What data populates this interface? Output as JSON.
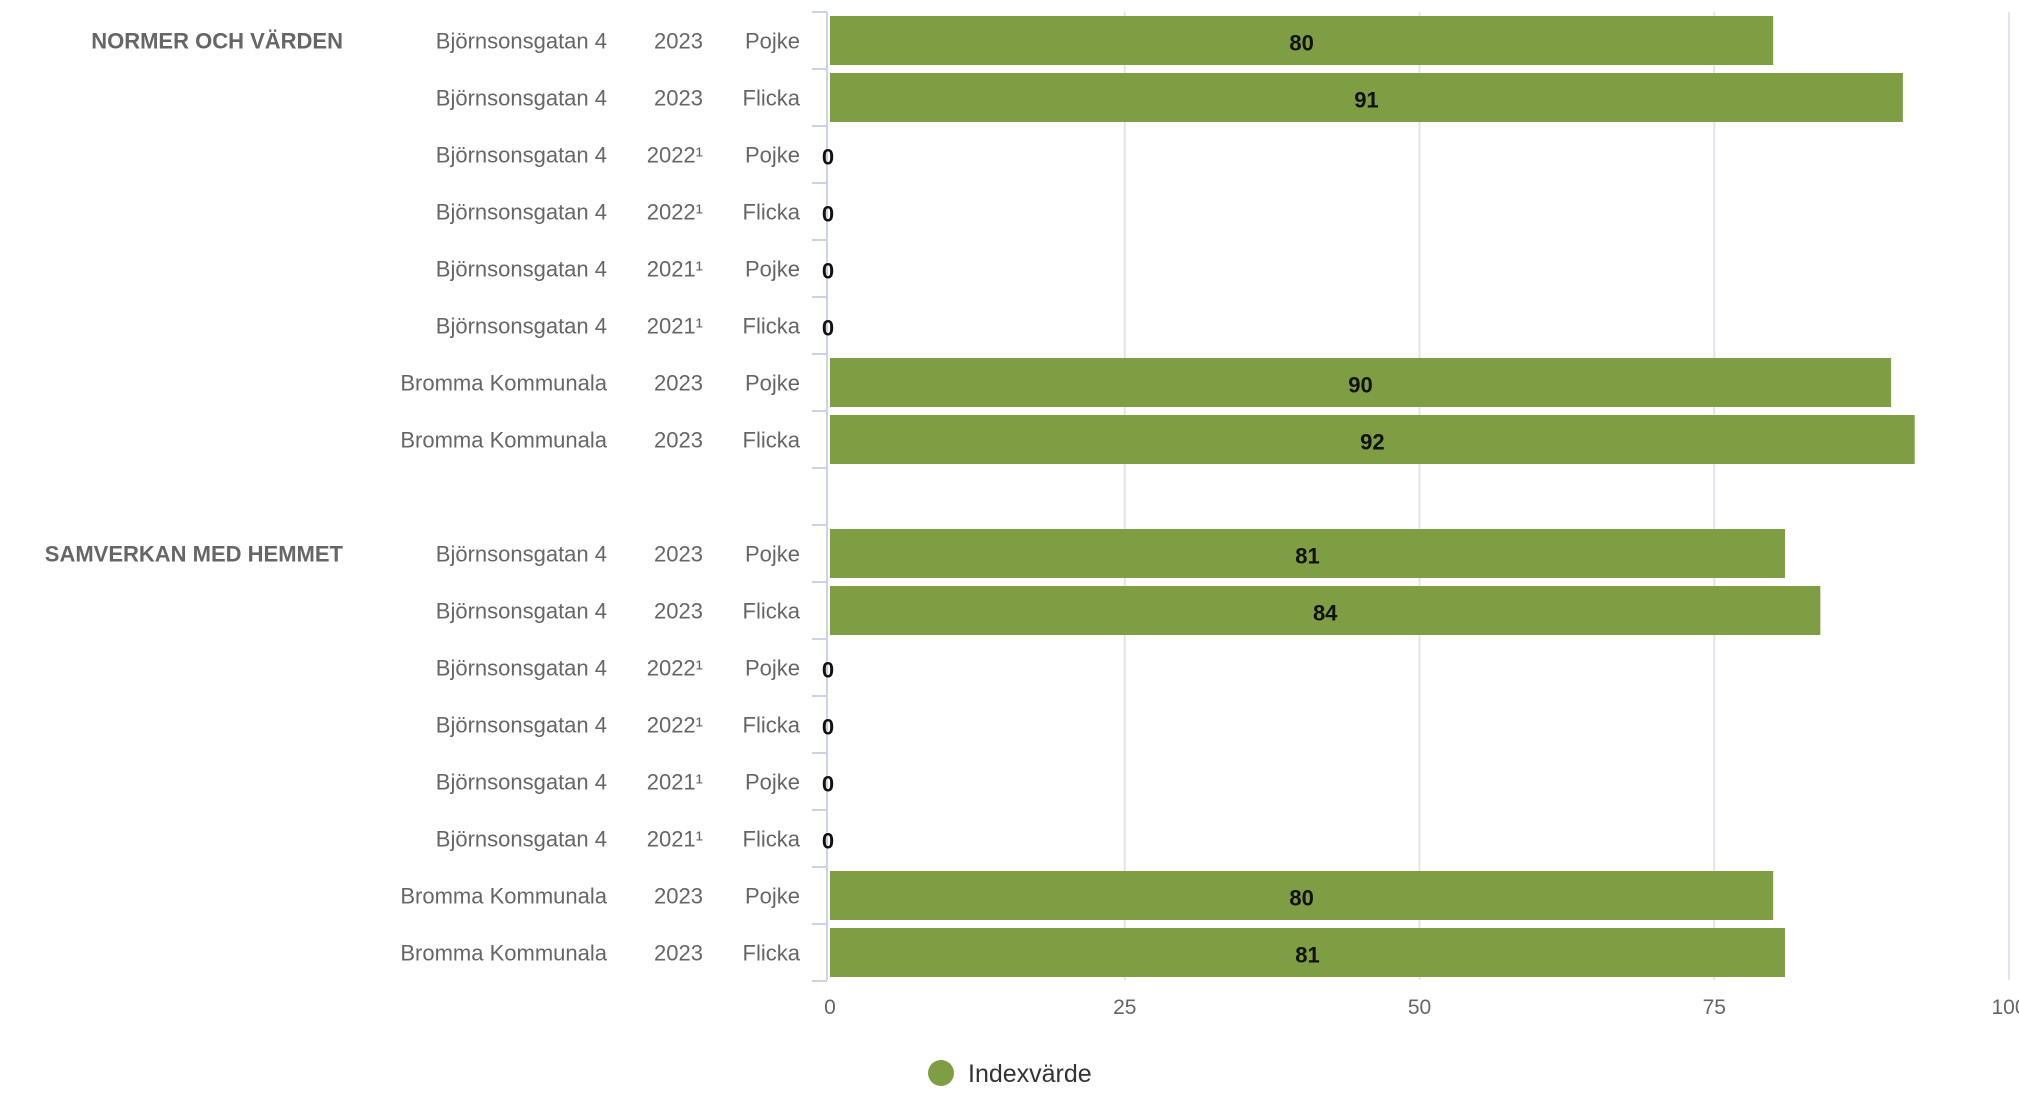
{
  "chart_data": {
    "type": "bar",
    "orientation": "horizontal",
    "xlim": [
      0,
      100
    ],
    "ticks": [
      0,
      25,
      50,
      75,
      100
    ],
    "grid": true,
    "legend_position": "bottom-center",
    "colors": {
      "bar": "#7f9d43",
      "grid": "#e1e4ec",
      "axis": "#cdd3e6"
    },
    "series": [
      {
        "name": "Indexvärde",
        "color": "#7f9d43"
      }
    ],
    "groups": [
      {
        "label": "NORMER OCH VÄRDEN",
        "rows": [
          {
            "school": "Björnsonsgatan 4",
            "year": "2023",
            "gender": "Pojke",
            "value": 80
          },
          {
            "school": "Björnsonsgatan 4",
            "year": "2023",
            "gender": "Flicka",
            "value": 91
          },
          {
            "school": "Björnsonsgatan 4",
            "year": "2022¹",
            "gender": "Pojke",
            "value": 0
          },
          {
            "school": "Björnsonsgatan 4",
            "year": "2022¹",
            "gender": "Flicka",
            "value": 0
          },
          {
            "school": "Björnsonsgatan 4",
            "year": "2021¹",
            "gender": "Pojke",
            "value": 0
          },
          {
            "school": "Björnsonsgatan 4",
            "year": "2021¹",
            "gender": "Flicka",
            "value": 0
          },
          {
            "school": "Bromma Kommunala",
            "year": "2023",
            "gender": "Pojke",
            "value": 90
          },
          {
            "school": "Bromma Kommunala",
            "year": "2023",
            "gender": "Flicka",
            "value": 92
          }
        ]
      },
      {
        "label": "SAMVERKAN MED HEMMET",
        "rows": [
          {
            "school": "Björnsonsgatan 4",
            "year": "2023",
            "gender": "Pojke",
            "value": 81
          },
          {
            "school": "Björnsonsgatan 4",
            "year": "2023",
            "gender": "Flicka",
            "value": 84
          },
          {
            "school": "Björnsonsgatan 4",
            "year": "2022¹",
            "gender": "Pojke",
            "value": 0
          },
          {
            "school": "Björnsonsgatan 4",
            "year": "2022¹",
            "gender": "Flicka",
            "value": 0
          },
          {
            "school": "Björnsonsgatan 4",
            "year": "2021¹",
            "gender": "Pojke",
            "value": 0
          },
          {
            "school": "Björnsonsgatan 4",
            "year": "2021¹",
            "gender": "Flicka",
            "value": 0
          },
          {
            "school": "Bromma Kommunala",
            "year": "2023",
            "gender": "Pojke",
            "value": 80
          },
          {
            "school": "Bromma Kommunala",
            "year": "2023",
            "gender": "Flicka",
            "value": 81
          }
        ]
      }
    ]
  }
}
